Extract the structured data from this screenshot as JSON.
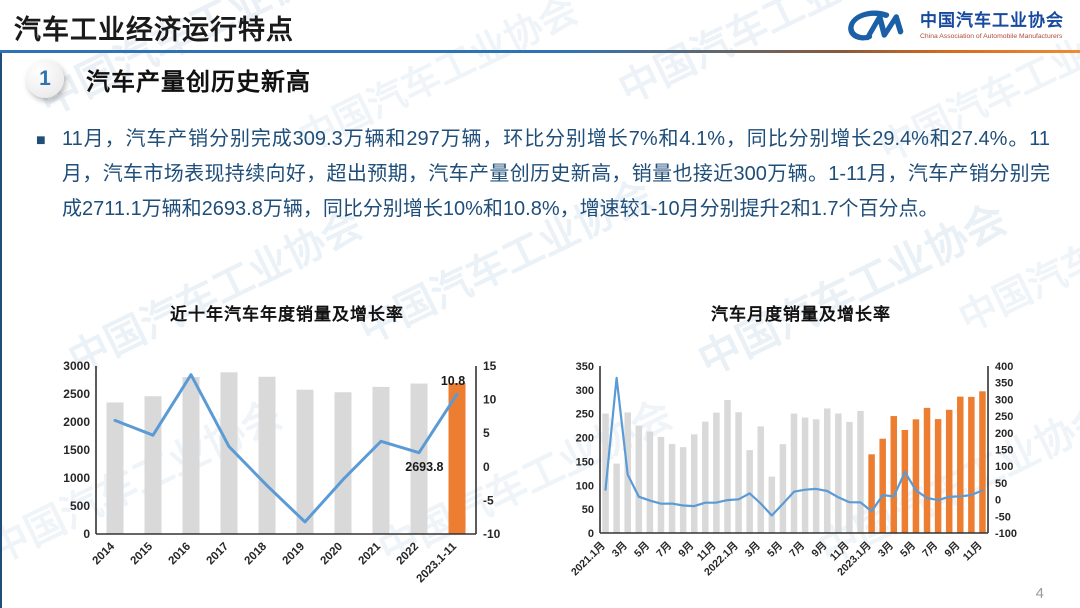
{
  "slide_title": "汽车工业经济运行特点",
  "logo": {
    "name_cn": "中国汽车工业协会",
    "name_en": "China Association of Automobile Manufacturers"
  },
  "section": {
    "number": "1",
    "heading": "汽车产量创历史新高"
  },
  "body": {
    "bullet": "■",
    "text": "11月，汽车产销分别完成309.3万辆和297万辆，环比分别增长7%和4.1%，同比分别增长29.4%和27.4%。11月，汽车市场表现持续向好，超出预期，汽车产量创历史新高，销量也接近300万辆。1-11月，汽车产销分别完成2711.1万辆和2693.8万辆，同比分别增长10%和10.8%，增速较1-10月分别提升2和1.7个百分点。"
  },
  "watermark": {
    "text": "中国汽车工业协会"
  },
  "page_number": "4",
  "colors": {
    "accent_blue": "#2E74B5",
    "text_blue": "#1F4E79",
    "bar_gray": "#D9D9D9",
    "bar_orange": "#ED7D31",
    "line_blue": "#5B9BD5",
    "divider_orange": "#ED7D31",
    "logo_blue": "#17499E",
    "logo_red": "#B04A35"
  },
  "chart_data": [
    {
      "type": "bar+line",
      "title": "近十年汽车年度销量及增长率",
      "categories": [
        "2014",
        "2015",
        "2016",
        "2017",
        "2018",
        "2019",
        "2020",
        "2021",
        "2022",
        "2023.1-11"
      ],
      "x_tick_labels": [
        "2014",
        "2015",
        "2016",
        "2017",
        "2018",
        "2019",
        "2020",
        "2021",
        "2022",
        "2023.1-11"
      ],
      "x_tick_every": 1,
      "bars": {
        "name": "年度销量(万辆)",
        "values": [
          2349.2,
          2459.8,
          2802.8,
          2887.9,
          2808.1,
          2576.9,
          2531.1,
          2627.5,
          2686.4,
          2693.8
        ],
        "highlight_from_index": 9
      },
      "line": {
        "name": "增长率(%)",
        "values": [
          6.9,
          4.7,
          13.7,
          3.0,
          -2.8,
          -8.2,
          -1.9,
          3.8,
          2.1,
          10.8
        ]
      },
      "left_axis": {
        "min": 0,
        "max": 3000,
        "step": 500
      },
      "right_axis": {
        "min": -10,
        "max": 15,
        "step": 5
      },
      "data_labels": {
        "growth_last": "10.8",
        "sales_last": "2693.8"
      },
      "colors": {
        "bar": "#D9D9D9",
        "highlight": "#ED7D31",
        "line": "#5B9BD5"
      },
      "legend": "none",
      "grid": false
    },
    {
      "type": "bar+line",
      "title": "汽车月度销量及增长率",
      "categories": [
        "2021.1月",
        "2021.2月",
        "2021.3月",
        "2021.4月",
        "2021.5月",
        "2021.6月",
        "2021.7月",
        "2021.8月",
        "2021.9月",
        "2021.10月",
        "2021.11月",
        "2021.12月",
        "2022.1月",
        "2022.2月",
        "2022.3月",
        "2022.4月",
        "2022.5月",
        "2022.6月",
        "2022.7月",
        "2022.8月",
        "2022.9月",
        "2022.10月",
        "2022.11月",
        "2022.12月",
        "2023.1月",
        "2023.2月",
        "2023.3月",
        "2023.4月",
        "2023.5月",
        "2023.6月",
        "2023.7月",
        "2023.8月",
        "2023.9月",
        "2023.10月",
        "2023.11月"
      ],
      "x_tick_labels": [
        "2021.1月",
        "3月",
        "5月",
        "7月",
        "9月",
        "11月",
        "2022.1月",
        "3月",
        "5月",
        "7月",
        "9月",
        "11月",
        "2023.1月",
        "3月",
        "5月",
        "7月",
        "9月",
        "11月"
      ],
      "x_tick_every": 2,
      "bars": {
        "name": "月度销量(万辆)",
        "values": [
          250.3,
          145.5,
          252.6,
          225.2,
          212.8,
          201.5,
          186.4,
          179.9,
          206.7,
          233.3,
          252.2,
          278.6,
          253.1,
          173.7,
          223.4,
          118.1,
          186.2,
          250.2,
          242.0,
          238.3,
          261.0,
          250.5,
          232.8,
          255.9,
          164.9,
          197.6,
          245.1,
          215.9,
          238.2,
          262.2,
          238.7,
          258.2,
          285.8,
          285.3,
          297.0
        ],
        "highlight_from_index": 24
      },
      "line": {
        "name": "同比增长率(%)",
        "values": [
          29.5,
          364.8,
          74.9,
          8.6,
          -3.1,
          -12.4,
          -11.9,
          -17.8,
          -19.6,
          -9.4,
          -9.1,
          -1.6,
          0.9,
          18.7,
          -11.7,
          -47.6,
          -12.6,
          23.8,
          29.7,
          32.1,
          25.7,
          6.9,
          -7.9,
          -8.4,
          -35.0,
          13.5,
          9.7,
          82.7,
          27.9,
          4.8,
          -1.4,
          8.4,
          9.5,
          13.8,
          27.4
        ]
      },
      "left_axis": {
        "min": 0,
        "max": 350,
        "step": 50
      },
      "right_axis": {
        "min": -100,
        "max": 400,
        "step": 50
      },
      "colors": {
        "bar": "#D9D9D9",
        "highlight": "#ED7D31",
        "line": "#5B9BD5"
      },
      "legend": "none",
      "grid": false
    }
  ]
}
